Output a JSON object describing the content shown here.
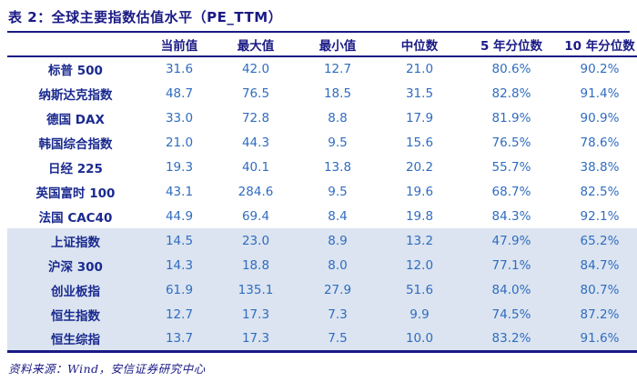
{
  "table": {
    "title": "表 2：全球主要指数估值水平（PE_TTM）",
    "columns": [
      "当前值",
      "最大值",
      "最小值",
      "中位数",
      "5 年分位数",
      "10 年分位数"
    ],
    "rows": [
      {
        "label": "标普 500",
        "values": [
          "31.6",
          "42.0",
          "12.7",
          "21.0",
          "80.6%",
          "90.2%"
        ],
        "highlighted": false
      },
      {
        "label": "纳斯达克指数",
        "values": [
          "48.7",
          "76.5",
          "18.5",
          "31.5",
          "82.8%",
          "91.4%"
        ],
        "highlighted": false
      },
      {
        "label": "德国 DAX",
        "values": [
          "33.0",
          "72.8",
          "8.8",
          "17.9",
          "81.9%",
          "90.9%"
        ],
        "highlighted": false
      },
      {
        "label": "韩国综合指数",
        "values": [
          "21.0",
          "44.3",
          "9.5",
          "15.6",
          "76.5%",
          "78.6%"
        ],
        "highlighted": false
      },
      {
        "label": "日经 225",
        "values": [
          "19.3",
          "40.1",
          "13.8",
          "20.2",
          "55.7%",
          "38.8%"
        ],
        "highlighted": false
      },
      {
        "label": "英国富时 100",
        "values": [
          "43.1",
          "284.6",
          "9.5",
          "19.6",
          "68.7%",
          "82.5%"
        ],
        "highlighted": false
      },
      {
        "label": "法国 CAC40",
        "values": [
          "44.9",
          "69.4",
          "8.4",
          "19.8",
          "84.3%",
          "92.1%"
        ],
        "highlighted": false
      },
      {
        "label": "上证指数",
        "values": [
          "14.5",
          "23.0",
          "8.9",
          "13.2",
          "47.9%",
          "65.2%"
        ],
        "highlighted": true
      },
      {
        "label": "沪深 300",
        "values": [
          "14.3",
          "18.8",
          "8.0",
          "12.0",
          "77.1%",
          "84.7%"
        ],
        "highlighted": true
      },
      {
        "label": "创业板指",
        "values": [
          "61.9",
          "135.1",
          "27.9",
          "51.6",
          "84.0%",
          "80.7%"
        ],
        "highlighted": true
      },
      {
        "label": "恒生指数",
        "values": [
          "12.7",
          "17.3",
          "7.3",
          "9.9",
          "74.5%",
          "87.2%"
        ],
        "highlighted": true
      },
      {
        "label": "恒生综指",
        "values": [
          "13.7",
          "17.3",
          "7.5",
          "10.0",
          "83.2%",
          "91.6%"
        ],
        "highlighted": true
      }
    ]
  },
  "footer": {
    "source": "资料来源：Wind，安信证券研究中心"
  },
  "colors": {
    "navy": "#1a1a85",
    "label_navy": "#1a2a8f",
    "value_blue": "#306cc0",
    "highlight_bg": "#dbe4f0"
  }
}
